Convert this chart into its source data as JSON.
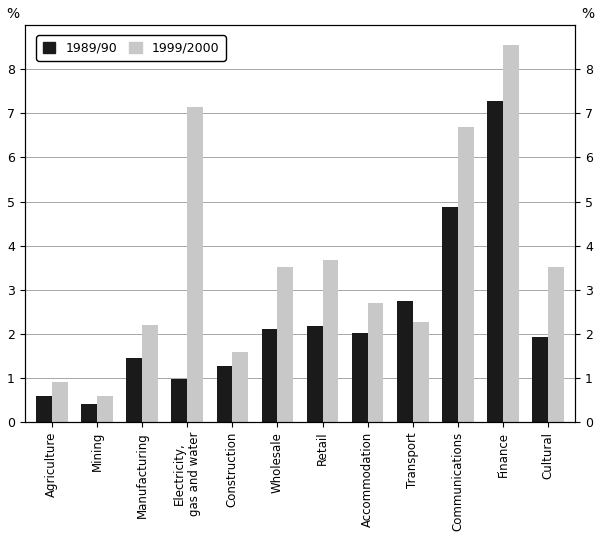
{
  "categories": [
    "Agriculture",
    "Mining",
    "Manufacturing",
    "Electricity,\ngas and water",
    "Construction",
    "Wholesale",
    "Retail",
    "Accommodation",
    "Transport",
    "Communications",
    "Finance",
    "Cultural"
  ],
  "values_1989": [
    0.58,
    0.4,
    1.45,
    0.98,
    1.27,
    2.12,
    2.17,
    2.02,
    2.75,
    4.88,
    7.27,
    1.93
  ],
  "values_1999": [
    0.9,
    0.58,
    2.2,
    7.15,
    1.6,
    3.52,
    3.67,
    2.7,
    2.27,
    6.7,
    8.55,
    3.52
  ],
  "color_1989": "#1a1a1a",
  "color_1999": "#c8c8c8",
  "ylim": [
    0,
    9
  ],
  "yticks": [
    0,
    1,
    2,
    3,
    4,
    5,
    6,
    7,
    8
  ],
  "ylabel_pct": "%",
  "legend_labels": [
    "1989/90",
    "1999/2000"
  ],
  "bar_width": 0.35,
  "figsize": [
    6.0,
    5.38
  ],
  "dpi": 100
}
